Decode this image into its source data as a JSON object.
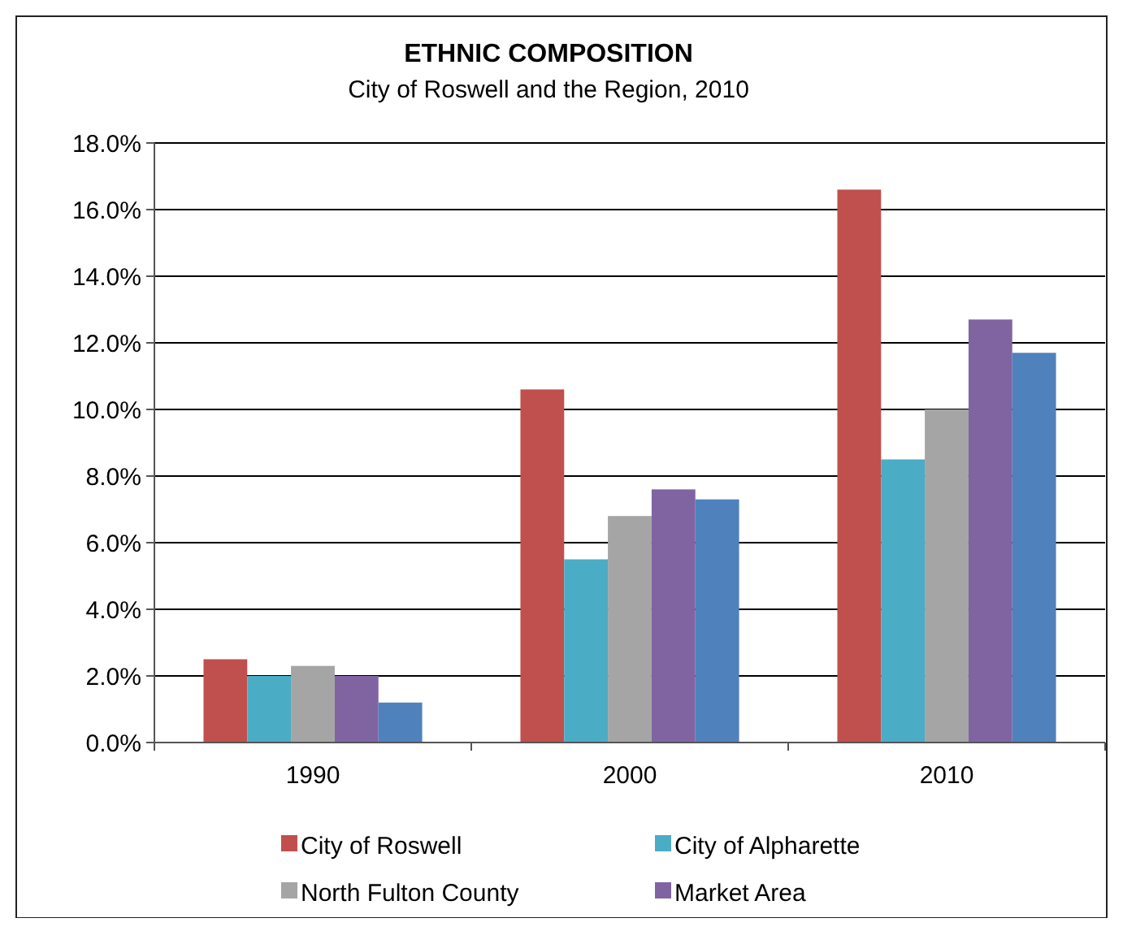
{
  "chart_data": {
    "type": "bar",
    "title": "ETHNIC COMPOSITION",
    "subtitle": "City of Roswell and the Region, 2010",
    "categories": [
      "1990",
      "2000",
      "2010"
    ],
    "series": [
      {
        "name": "City of Roswell",
        "color": "#c0504d",
        "values": [
          2.5,
          10.6,
          16.6
        ]
      },
      {
        "name": "City of Alpharette",
        "color": "#4bacc6",
        "values": [
          2.0,
          5.5,
          8.5
        ]
      },
      {
        "name": "North Fulton County",
        "color": "#a5a5a5",
        "values": [
          2.3,
          6.8,
          10.0
        ]
      },
      {
        "name": "Market Area",
        "color": "#8064a2",
        "values": [
          2.0,
          7.6,
          12.7
        ]
      },
      {
        "color": "#4f81bd",
        "values": [
          1.2,
          7.3,
          11.7
        ]
      }
    ],
    "ylim": [
      0,
      18
    ],
    "yticks": [
      {
        "value": 0,
        "label": "0.0%"
      },
      {
        "value": 2,
        "label": "2.0%"
      },
      {
        "value": 4,
        "label": "4.0%"
      },
      {
        "value": 6,
        "label": "6.0%"
      },
      {
        "value": 8,
        "label": "8.0%"
      },
      {
        "value": 10,
        "label": "10.0%"
      },
      {
        "value": 12,
        "label": "12.0%"
      },
      {
        "value": 14,
        "label": "14.0%"
      },
      {
        "value": 16,
        "label": "16.0%"
      },
      {
        "value": 18,
        "label": "18.0%"
      }
    ],
    "grid": "y",
    "legend": "bottom"
  }
}
